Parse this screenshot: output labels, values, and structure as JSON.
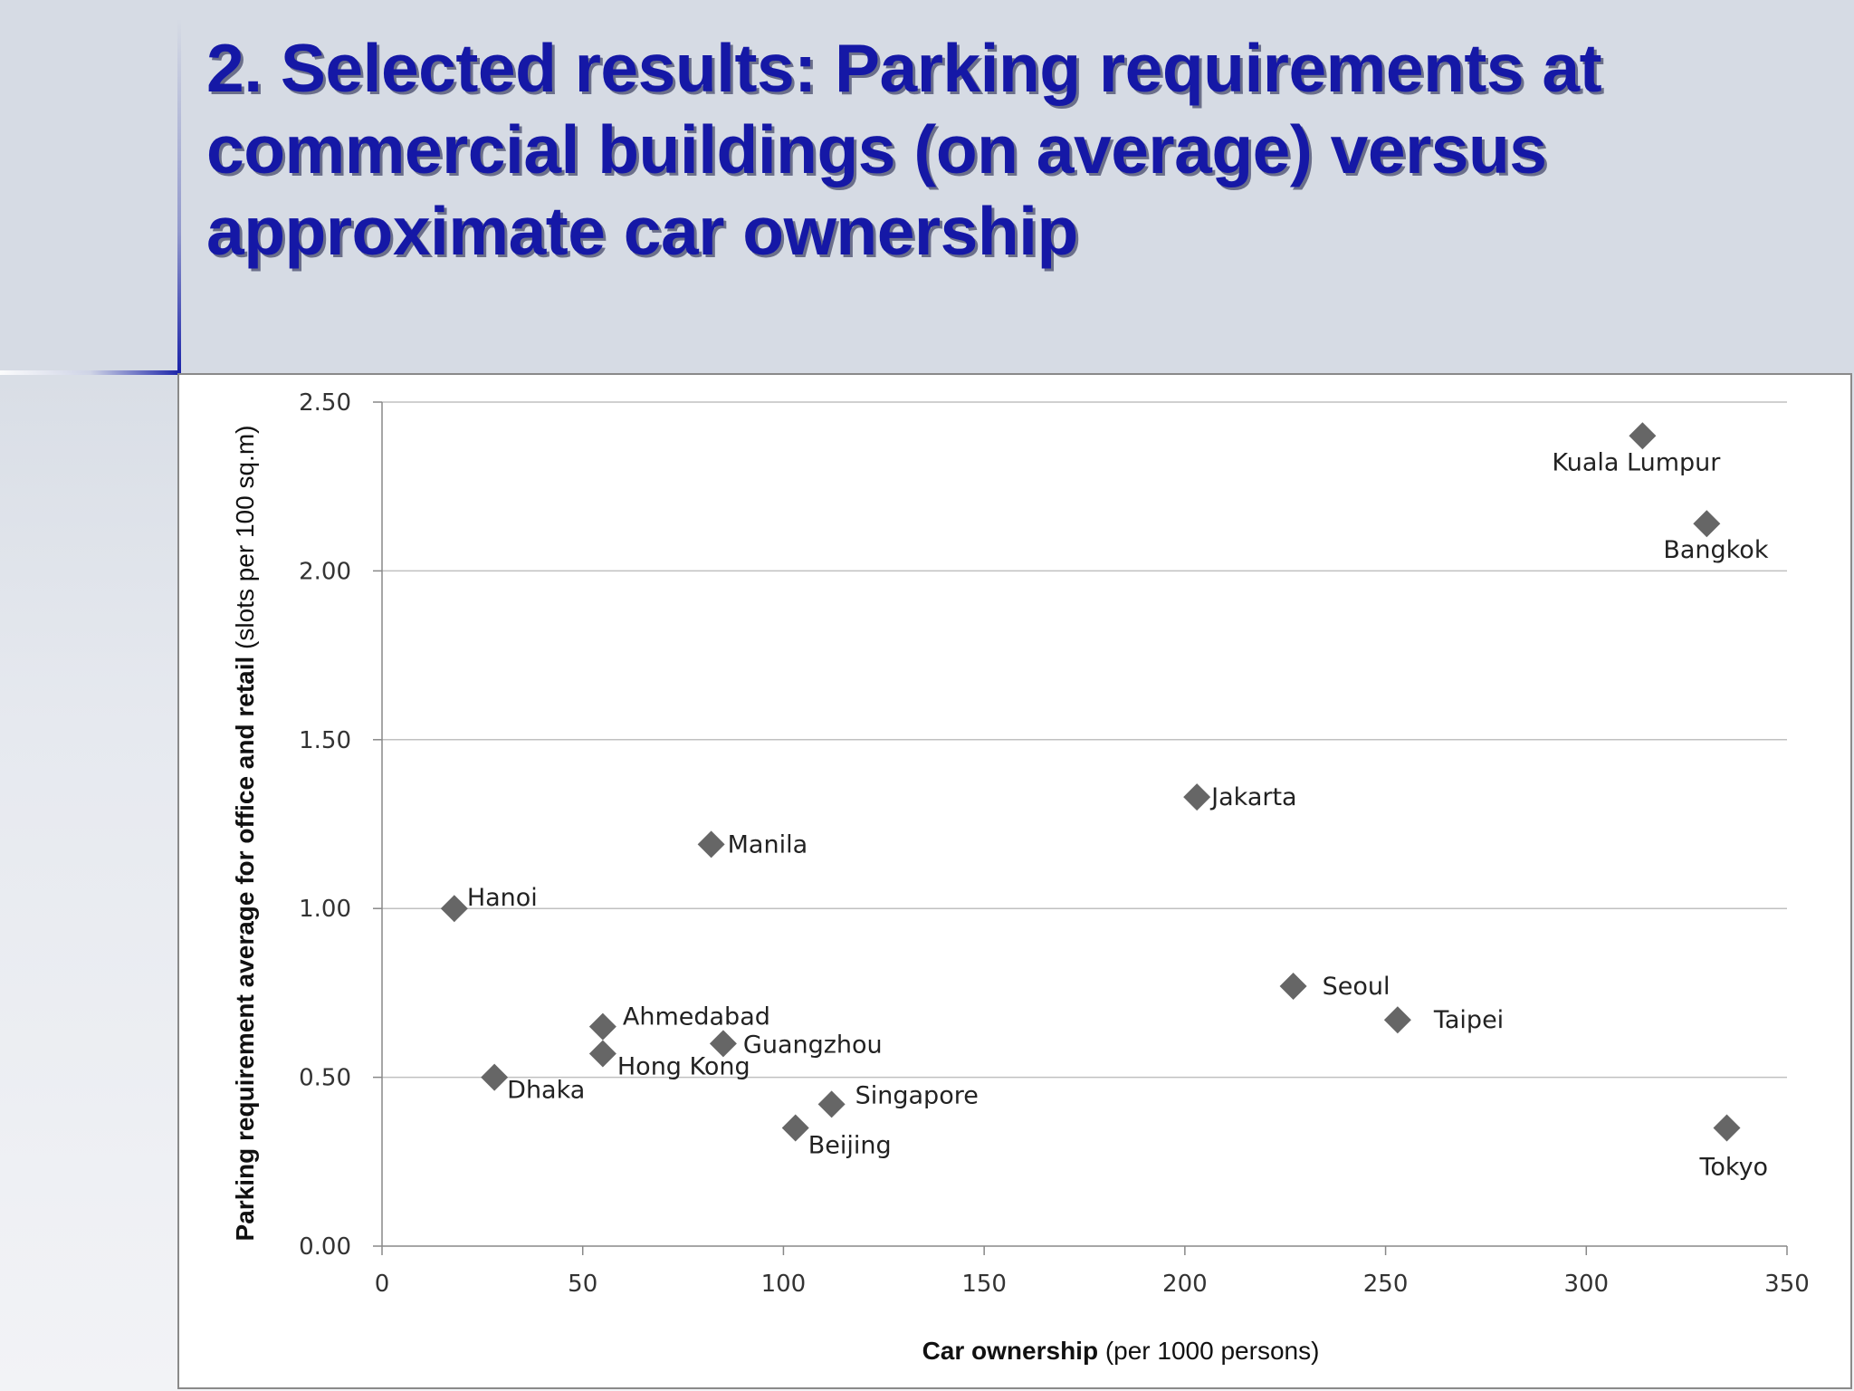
{
  "slide": {
    "title": "2. Selected results: Parking requirements at commercial buildings (on average) versus approximate car ownership"
  },
  "colors": {
    "title": "#1518a6",
    "marker": "#666666",
    "gridline": "#c0c0c0"
  },
  "chart_data": {
    "type": "scatter",
    "xlabel_bold": "Car ownership",
    "xlabel_rest": " (per 1000 persons)",
    "ylabel_bold": "Parking requirement average for office and retail",
    "ylabel_rest": " (slots per 100 sq.m)",
    "xlim": [
      0,
      350
    ],
    "ylim": [
      0,
      2.5
    ],
    "x_ticks": [
      "0",
      "50",
      "100",
      "150",
      "200",
      "250",
      "300",
      "350"
    ],
    "y_ticks": [
      "0.00",
      "0.50",
      "1.00",
      "1.50",
      "2.00",
      "2.50"
    ],
    "grid": "horizontal",
    "legend": "none",
    "marker": "diamond",
    "points": [
      {
        "label": "Kuala Lumpur",
        "x": 314,
        "y": 2.4
      },
      {
        "label": "Bangkok",
        "x": 330,
        "y": 2.14
      },
      {
        "label": "Jakarta",
        "x": 203,
        "y": 1.33
      },
      {
        "label": "Manila",
        "x": 82,
        "y": 1.19
      },
      {
        "label": "Hanoi",
        "x": 18,
        "y": 1.0
      },
      {
        "label": "Seoul",
        "x": 227,
        "y": 0.77
      },
      {
        "label": "Taipei",
        "x": 253,
        "y": 0.67
      },
      {
        "label": "Ahmedabad",
        "x": 55,
        "y": 0.65
      },
      {
        "label": "Guangzhou",
        "x": 85,
        "y": 0.6
      },
      {
        "label": "Hong Kong",
        "x": 55,
        "y": 0.57
      },
      {
        "label": "Dhaka",
        "x": 28,
        "y": 0.5
      },
      {
        "label": "Singapore",
        "x": 112,
        "y": 0.42
      },
      {
        "label": "Beijing",
        "x": 103,
        "y": 0.35
      },
      {
        "label": "Tokyo",
        "x": 335,
        "y": 0.35
      }
    ]
  }
}
